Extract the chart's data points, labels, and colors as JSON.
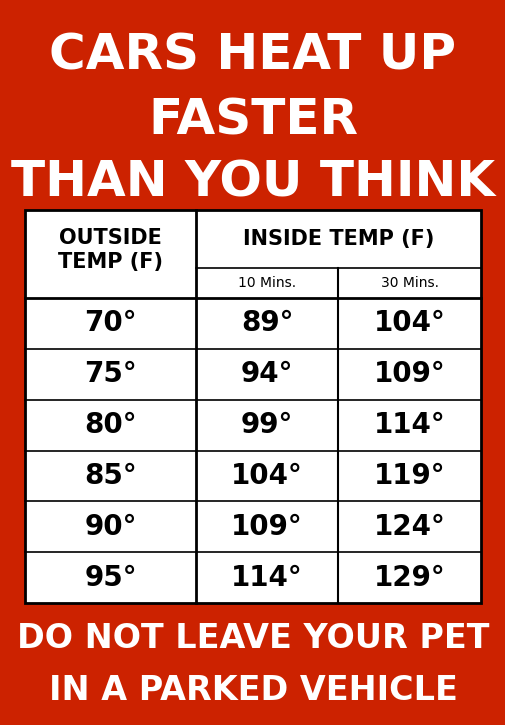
{
  "title_line1": "CARS HEAT UP",
  "title_line2": "FASTER",
  "title_line3": "THAN YOU THINK",
  "footer_line1": "DO NOT LEAVE YOUR PET",
  "footer_line2": "IN A PARKED VEHICLE",
  "bg_color": "#CC2200",
  "table_bg": "#FFFFFF",
  "text_color_white": "#FFFFFF",
  "text_color_black": "#000000",
  "sub_headers": [
    "10 Mins.",
    "30 Mins."
  ],
  "rows": [
    [
      "70°",
      "89°",
      "104°"
    ],
    [
      "75°",
      "94°",
      "109°"
    ],
    [
      "80°",
      "99°",
      "114°"
    ],
    [
      "85°",
      "104°",
      "119°"
    ],
    [
      "90°",
      "109°",
      "124°"
    ],
    [
      "95°",
      "114°",
      "129°"
    ]
  ],
  "figsize": [
    5.06,
    7.25
  ],
  "dpi": 100,
  "title_fontsize": 36,
  "data_fontsize": 20,
  "header_fontsize": 15,
  "subheader_fontsize": 10,
  "footer_fontsize": 24
}
